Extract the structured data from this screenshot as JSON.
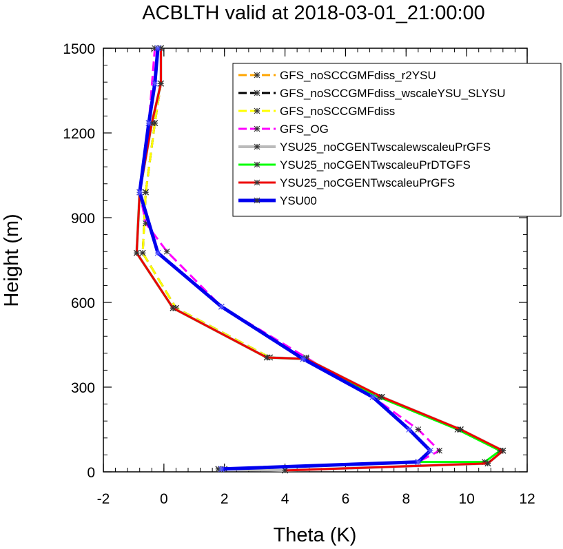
{
  "chart_data": {
    "type": "line",
    "title": "ACBLTH valid at 2018-03-01_21:00:00",
    "xlabel": "Theta (K)",
    "ylabel": "Height (m)",
    "xlim": [
      -2,
      12
    ],
    "ylim": [
      0,
      1500
    ],
    "xticks": [
      "-2",
      "0",
      "2",
      "4",
      "6",
      "8",
      "10",
      "12"
    ],
    "yticks": [
      "0",
      "300",
      "600",
      "900",
      "1200",
      "1500"
    ],
    "grid": false,
    "legend_position": "top-right",
    "series": [
      {
        "name": "GFS_noSCCGMFdiss_r2YSU",
        "color": "#ffa500",
        "dash": "dash",
        "width": 3,
        "x": [
          4.0,
          10.7,
          11.2,
          9.8,
          7.2,
          4.7,
          3.5,
          0.4,
          -0.7,
          -0.6,
          -0.3,
          -0.1,
          -0.1
        ],
        "y": [
          5,
          30,
          75,
          150,
          265,
          400,
          405,
          580,
          775,
          990,
          1235,
          1375,
          1500
        ]
      },
      {
        "name": "GFS_noSCCGMFdiss_wscaleYSU_SLYSU",
        "color": "#000000",
        "dash": "dash",
        "width": 3,
        "x": [
          4.0,
          10.7,
          11.2,
          9.8,
          7.2,
          4.7,
          3.5,
          0.4,
          -0.7,
          -0.6,
          -0.3,
          -0.1,
          -0.1
        ],
        "y": [
          5,
          30,
          75,
          150,
          265,
          400,
          405,
          580,
          775,
          990,
          1235,
          1375,
          1500
        ]
      },
      {
        "name": "GFS_noSCCGMFdiss",
        "color": "#ffff00",
        "dash": "dash",
        "width": 3,
        "x": [
          4.0,
          10.7,
          11.2,
          9.8,
          7.2,
          4.7,
          3.5,
          0.4,
          -0.7,
          -0.6,
          -0.3,
          -0.1,
          -0.1
        ],
        "y": [
          5,
          30,
          75,
          150,
          265,
          400,
          405,
          580,
          775,
          990,
          1235,
          1375,
          1500
        ]
      },
      {
        "name": "GFS_OG",
        "color": "#ff00ff",
        "dash": "dash",
        "width": 3,
        "x": [
          1.8,
          8.4,
          9.1,
          8.4,
          6.9,
          4.7,
          1.9,
          0.1,
          -0.6,
          -0.8,
          -0.5,
          -0.3
        ],
        "y": [
          10,
          35,
          75,
          150,
          265,
          405,
          585,
          780,
          880,
          990,
          1235,
          1500
        ]
      },
      {
        "name": "YSU25_noCGENTwscalewscaleuPrGFS",
        "color": "#bbbbbb",
        "dash": "solid",
        "width": 4,
        "x": [
          1.8,
          4.0,
          10.7,
          11.2,
          9.8,
          7.2,
          4.7,
          3.4,
          0.3,
          -0.9,
          -0.8,
          -0.4,
          -0.1,
          -0.1
        ],
        "y": [
          10,
          5,
          30,
          75,
          150,
          265,
          400,
          405,
          580,
          775,
          990,
          1235,
          1375,
          1500
        ]
      },
      {
        "name": "YSU25_noCGENTwscaleuPrDTGFS",
        "color": "#00ff00",
        "dash": "solid",
        "width": 3,
        "x": [
          1.8,
          2.0,
          8.4,
          10.6,
          11.1,
          9.7,
          7.1,
          4.6,
          3.4,
          0.3,
          -0.9,
          -0.8,
          -0.4,
          -0.1,
          -0.1
        ],
        "y": [
          10,
          10,
          35,
          35,
          75,
          150,
          265,
          400,
          405,
          580,
          775,
          990,
          1235,
          1375,
          1500
        ]
      },
      {
        "name": "YSU25_noCGENTwscaleuPrGFS",
        "color": "#ee0000",
        "dash": "solid",
        "width": 3,
        "x": [
          4.0,
          10.7,
          11.2,
          9.8,
          7.2,
          4.7,
          3.4,
          0.3,
          -0.9,
          -0.8,
          -0.4,
          -0.1,
          -0.1
        ],
        "y": [
          5,
          30,
          75,
          150,
          265,
          400,
          405,
          580,
          775,
          990,
          1235,
          1375,
          1500
        ]
      },
      {
        "name": "YSU00",
        "color": "#0000ee",
        "dash": "solid",
        "width": 5,
        "x": [
          1.9,
          8.4,
          8.8,
          8.1,
          6.9,
          4.6,
          1.9,
          -0.2,
          -0.8,
          -0.5,
          -0.3,
          -0.2
        ],
        "y": [
          10,
          35,
          75,
          150,
          265,
          400,
          585,
          775,
          990,
          1235,
          1375,
          1500
        ]
      }
    ]
  }
}
